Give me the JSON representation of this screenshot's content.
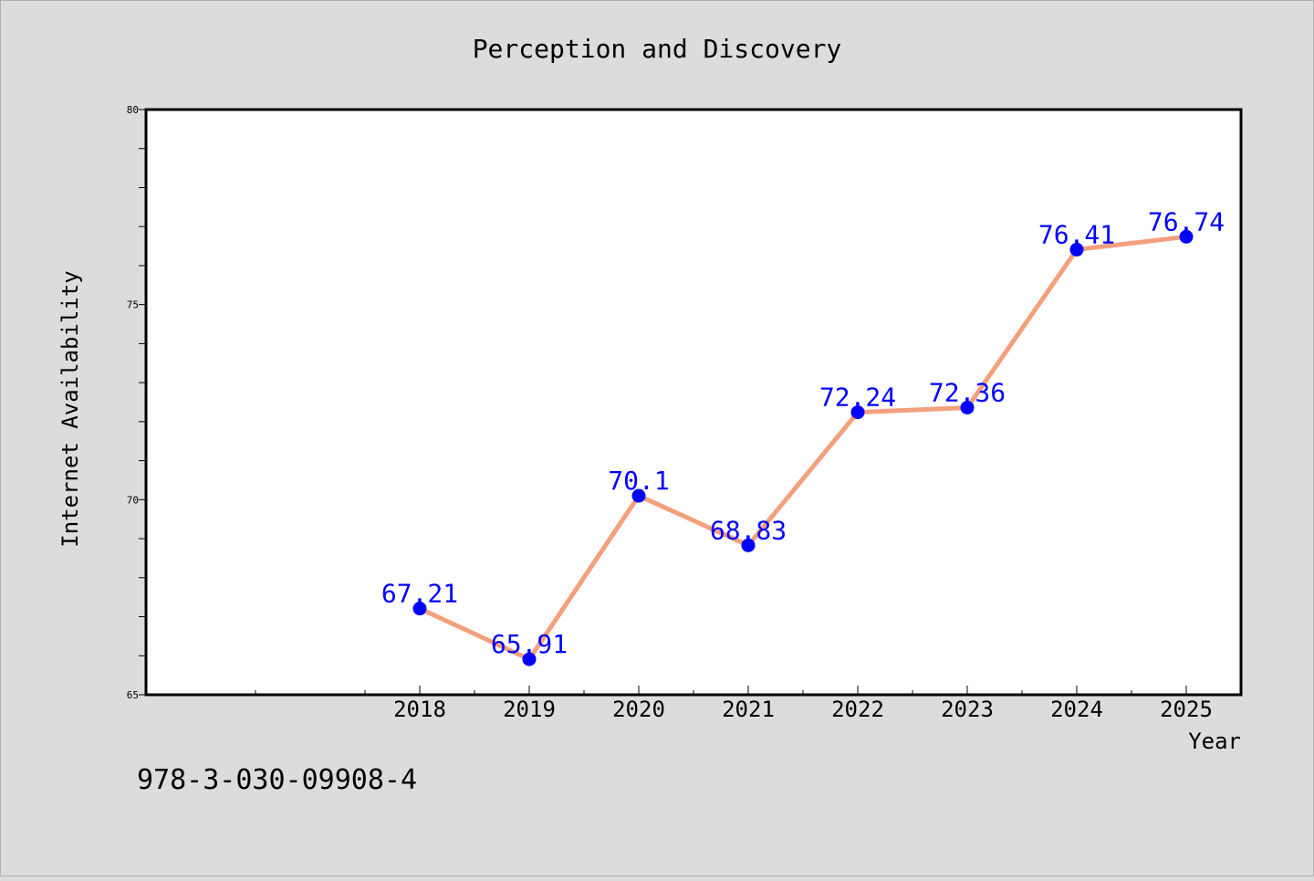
{
  "chart_data": {
    "type": "line",
    "title": "Perception and Discovery",
    "xlabel": "Year",
    "ylabel": "Internet Availability",
    "x": [
      2018,
      2019,
      2020,
      2021,
      2022,
      2023,
      2024,
      2025
    ],
    "x_tick_labels": [
      "2018",
      "2019",
      "2020",
      "2021",
      "2022",
      "2023",
      "2024",
      "2025"
    ],
    "xlim": [
      2015.5,
      2025.5
    ],
    "ylim": [
      65,
      80
    ],
    "y_major_ticks": [
      65,
      70,
      75,
      80
    ],
    "y_minor_step": 1,
    "series": [
      {
        "values": [
          67.21,
          65.91,
          70.1,
          68.83,
          72.24,
          72.36,
          76.41,
          76.74
        ],
        "data_labels": [
          "67.21",
          "65.91",
          "70.1",
          "68.83",
          "72.24",
          "72.36",
          "76.41",
          "76.74"
        ],
        "line_color": "#f4a07c",
        "marker_color": "#0000ff",
        "label_color": "#0000ff"
      }
    ],
    "grid": false,
    "legend": "none"
  },
  "footer_text": "978-3-030-09908-4",
  "colors": {
    "figure_background": "#dcdcdc",
    "plot_background": "#ffffff",
    "axis_color": "#000000",
    "text_color": "#000000"
  }
}
